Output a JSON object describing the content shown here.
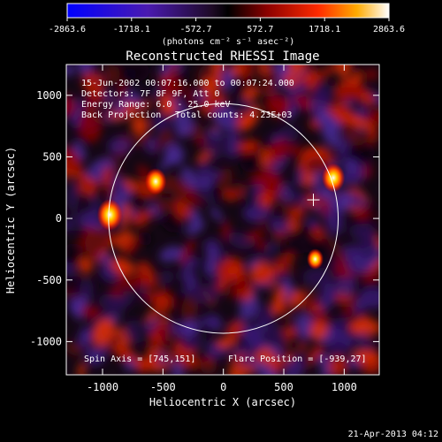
{
  "chart_data": {
    "type": "heatmap",
    "title": "Reconstructed RHESSI Image",
    "xlabel": "Heliocentric X (arcsec)",
    "ylabel": "Heliocentric Y (arcsec)",
    "xlim": [
      -1300,
      1290
    ],
    "ylim": [
      -1270,
      1250
    ],
    "xticks": [
      -1000,
      -500,
      0,
      500,
      1000
    ],
    "yticks": [
      -1000,
      -500,
      0,
      500,
      1000
    ],
    "colorbar": {
      "range": [
        -2863.6,
        2863.6
      ],
      "ticks": [
        "-2863.6",
        "-1718.1",
        "-572.7",
        "572.7",
        "1718.1",
        "2863.6"
      ],
      "unit": "(photons cm⁻² s⁻¹ asec⁻²)"
    },
    "annotations": [
      "15-Jun-2002 00:07:16.000 to 00:07:24.000",
      "Detectors: 7F 8F 9F, Att 0",
      "Energy Range: 6.0 - 25.0 keV",
      "Back Projection",
      "Total counts: 4.23E+03"
    ],
    "spin_axis_label": "Spin Axis = [745,151]",
    "flare_position_label": "Flare Position = [-939,27]",
    "spin_axis": [
      745,
      151
    ],
    "flare_position": [
      -939,
      27
    ],
    "solar_disk_radius_arcsec": 950,
    "sources": [
      {
        "x": -940,
        "y": 30,
        "peak": 2863.6
      },
      {
        "x": 910,
        "y": 330,
        "peak": 2500
      },
      {
        "x": -560,
        "y": 300,
        "peak": 2200
      },
      {
        "x": 760,
        "y": -330,
        "peak": 1400
      }
    ],
    "timestamp": "21-Apr-2013 04:12"
  }
}
